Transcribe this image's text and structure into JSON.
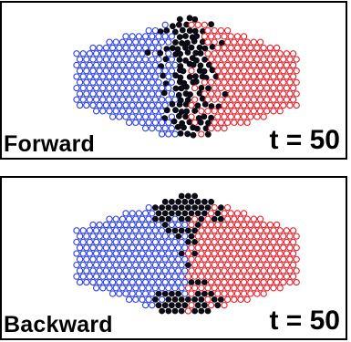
{
  "panels": [
    {
      "id": "forward",
      "direction": "Forward",
      "time": "t = 50",
      "mixing": "scattered"
    },
    {
      "id": "backward",
      "direction": "Backward",
      "time": "t = 50",
      "mixing": "clustered"
    }
  ],
  "colors": {
    "left_particles": "#2a3fe8",
    "right_particles": "#e8202a",
    "crossed_particles": "#0b0b1a",
    "frame": "#000000"
  }
}
